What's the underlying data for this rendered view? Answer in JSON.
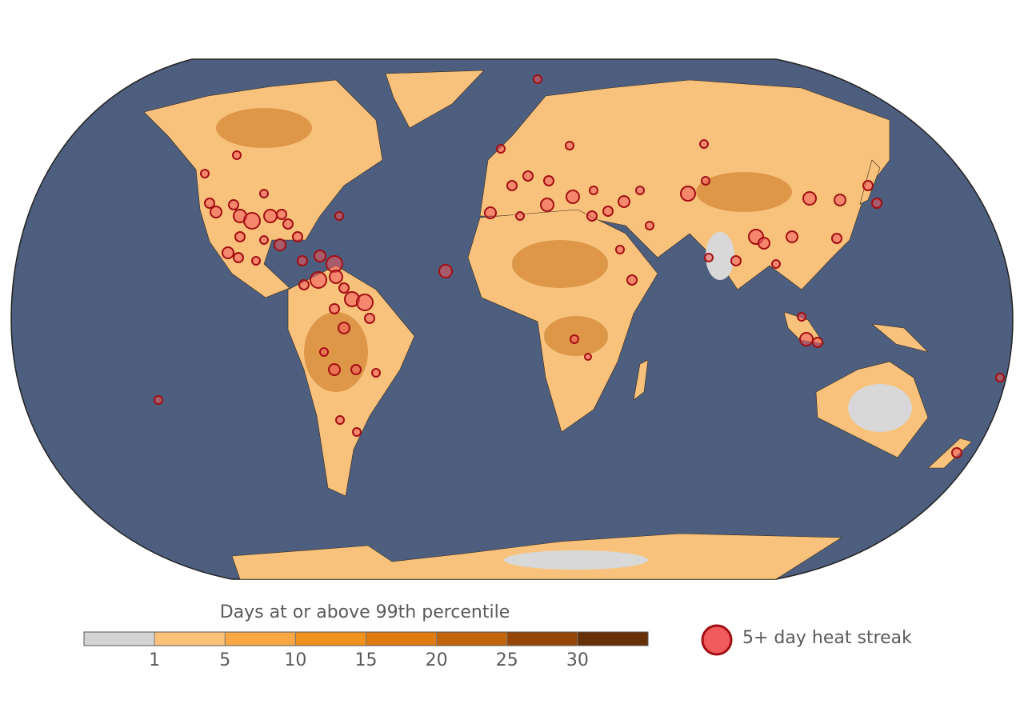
{
  "legend": {
    "title": "Days at or above 99th percentile",
    "colorbar": {
      "ticks": [
        1,
        5,
        10,
        15,
        20,
        25,
        30
      ],
      "colors": [
        "#d3d3d3",
        "#fdc27a",
        "#f7a845",
        "#f0921e",
        "#df7b10",
        "#c1640c",
        "#954607",
        "#673006"
      ]
    },
    "marker_label": "5+ day heat streak",
    "marker_color": "#f25a5e",
    "marker_stroke": "#a30f12"
  }
}
